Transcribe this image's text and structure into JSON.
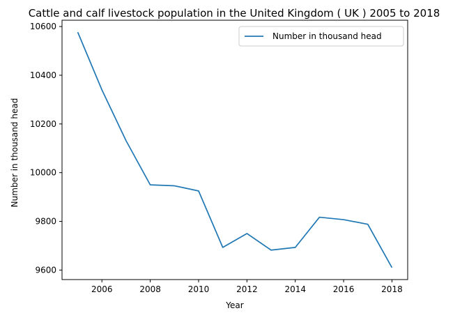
{
  "chart_data": {
    "type": "line",
    "title": "Cattle and calf livestock population in the United Kingdom ( UK ) 2005 to 2018",
    "xlabel": "Year",
    "ylabel": "Number in thousand head",
    "x": [
      2005,
      2006,
      2007,
      2008,
      2009,
      2010,
      2011,
      2012,
      2013,
      2014,
      2015,
      2016,
      2017,
      2018
    ],
    "series": [
      {
        "name": "Number in thousand head",
        "color": "#1f77b4",
        "values": [
          10577,
          10340,
          10131,
          9950,
          9946,
          9925,
          9693,
          9750,
          9682,
          9693,
          9817,
          9807,
          9788,
          9610
        ]
      }
    ],
    "xlim": [
      2004.35,
      2018.65
    ],
    "ylim": [
      9561,
      10626
    ],
    "xticks": [
      "2006",
      "2008",
      "2010",
      "2012",
      "2014",
      "2016",
      "2018"
    ],
    "yticks": [
      "9600",
      "9800",
      "10000",
      "10200",
      "10400",
      "10600"
    ],
    "grid": false,
    "legend_position": "top-right"
  }
}
